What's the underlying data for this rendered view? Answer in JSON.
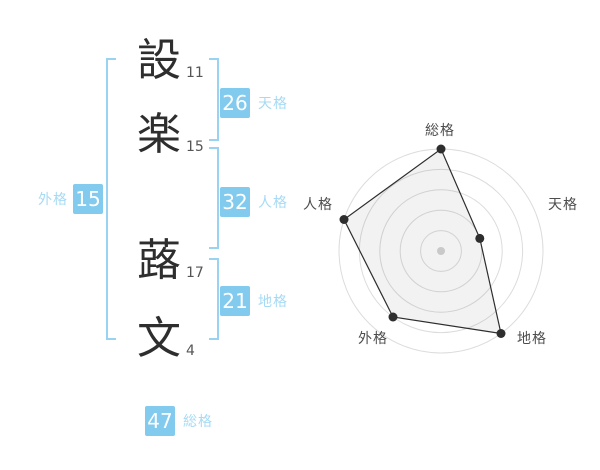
{
  "name_diagram": {
    "chars": [
      {
        "char": "設",
        "strokes": "11"
      },
      {
        "char": "楽",
        "strokes": "15"
      },
      {
        "char": "蕗",
        "strokes": "17"
      },
      {
        "char": "文",
        "strokes": "4"
      }
    ],
    "scores": {
      "tenkaku": {
        "value": "26",
        "label": "天格"
      },
      "jinkaku": {
        "value": "32",
        "label": "人格"
      },
      "chikaku": {
        "value": "21",
        "label": "地格"
      },
      "gaikaku": {
        "value": "15",
        "label": "外格"
      },
      "soukaku": {
        "value": "47",
        "label": "総格"
      }
    }
  },
  "chart_data": {
    "type": "radar",
    "axes": [
      "総格",
      "天格",
      "地格",
      "外格",
      "人格"
    ],
    "values": [
      5,
      2,
      5,
      4,
      5
    ],
    "max": 5,
    "rings": 5,
    "angles_deg": [
      -90,
      -18,
      54,
      126,
      198
    ],
    "grid": "concentric-circles",
    "spokes": false,
    "center_dot": true,
    "legend": "none"
  },
  "colors": {
    "accent_blue": "#82caee",
    "bracket_blue": "#9ad3f1",
    "label_blue": "#a6daf5",
    "chip_text": "#ffffff",
    "kanji_text": "#2e2e2e",
    "stroke_number_text": "#555555",
    "radar_ring": "#dcdcdc",
    "radar_line": "#2e2e2e",
    "radar_point": "#2e2e2e",
    "radar_fill": "rgba(70,70,70,0.07)",
    "radar_label": "#4d4d4d",
    "radar_center_dot": "#c9c9c9"
  }
}
